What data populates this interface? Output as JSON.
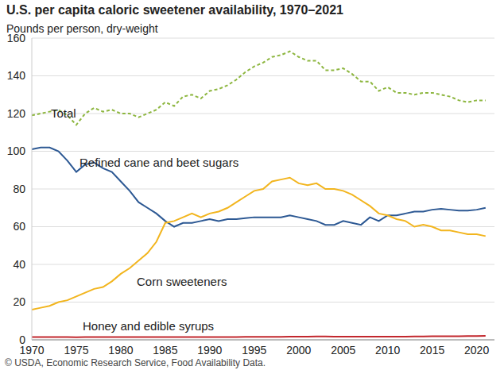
{
  "chart_data": {
    "type": "line",
    "title": "U.S. per capita caloric sweetener availability, 1970–2021",
    "ylabel": "Pounds per person, dry-weight",
    "source": "© USDA, Economic Research Service, Food Availability Data.",
    "x": [
      1970,
      1971,
      1972,
      1973,
      1974,
      1975,
      1976,
      1977,
      1978,
      1979,
      1980,
      1981,
      1982,
      1983,
      1984,
      1985,
      1986,
      1987,
      1988,
      1989,
      1990,
      1991,
      1992,
      1993,
      1994,
      1995,
      1996,
      1997,
      1998,
      1999,
      2000,
      2001,
      2002,
      2003,
      2004,
      2005,
      2006,
      2007,
      2008,
      2009,
      2010,
      2011,
      2012,
      2013,
      2014,
      2015,
      2016,
      2017,
      2018,
      2019,
      2020,
      2021
    ],
    "xlim": [
      1970,
      2022
    ],
    "xticks": [
      1970,
      1975,
      1980,
      1985,
      1990,
      1995,
      2000,
      2005,
      2010,
      2015,
      2020
    ],
    "ylim": [
      0,
      160
    ],
    "yticks": [
      0,
      20,
      40,
      60,
      80,
      100,
      120,
      140,
      160
    ],
    "grid": true,
    "series": [
      {
        "name": "Total",
        "color": "#8db63f",
        "line_style": "dashed",
        "values": [
          119,
          120,
          121,
          122,
          119,
          114,
          120,
          123,
          121,
          122,
          120,
          120,
          118,
          120,
          122,
          126,
          124,
          129,
          130,
          128,
          132,
          133,
          135,
          138,
          142,
          145,
          147,
          150,
          151,
          153,
          150,
          148,
          148,
          143,
          143,
          144,
          141,
          137,
          137,
          132,
          134,
          131,
          131,
          130,
          131,
          131,
          130,
          129,
          127,
          126,
          127,
          127
        ]
      },
      {
        "name": "Refined cane and beet sugars",
        "color": "#2c5893",
        "line_style": "solid",
        "values": [
          101,
          102,
          102,
          100,
          95,
          89,
          93,
          94,
          91,
          89,
          84,
          79,
          73,
          70,
          67,
          63,
          60,
          62,
          62,
          63,
          64,
          63,
          64,
          64,
          64.5,
          65,
          65,
          65,
          65,
          66,
          65,
          64,
          63,
          61,
          61,
          63,
          62,
          61,
          65,
          63,
          66,
          66,
          67,
          68,
          68,
          69,
          69.5,
          69,
          68.5,
          68.5,
          69,
          70
        ]
      },
      {
        "name": "Corn sweeteners",
        "color": "#f2b51e",
        "line_style": "solid",
        "values": [
          16,
          17,
          18,
          20,
          21,
          23,
          25,
          27,
          28,
          31,
          35,
          38,
          42,
          46,
          52,
          62,
          63,
          65,
          67,
          65,
          67,
          68,
          70,
          73,
          76,
          79,
          80,
          84,
          85,
          86,
          83,
          82,
          83,
          80,
          80,
          79,
          77,
          74,
          71,
          67,
          66,
          64,
          63,
          60,
          61,
          60,
          58,
          58,
          57,
          56,
          56,
          55
        ]
      },
      {
        "name": "Honey and edible syrups",
        "color": "#c2272d",
        "line_style": "solid",
        "values": [
          1.5,
          1.5,
          1.5,
          1.5,
          1.5,
          1.4,
          1.5,
          1.5,
          1.5,
          1.5,
          1.5,
          1.5,
          1.5,
          1.5,
          1.5,
          1.5,
          1.5,
          1.5,
          1.5,
          1.5,
          1.5,
          1.5,
          1.5,
          1.5,
          1.6,
          1.6,
          1.6,
          1.6,
          1.6,
          1.7,
          1.7,
          1.7,
          1.8,
          1.8,
          1.7,
          1.7,
          1.7,
          1.7,
          1.7,
          1.7,
          1.7,
          1.7,
          1.7,
          1.8,
          1.8,
          1.9,
          1.9,
          1.9,
          1.9,
          2,
          2,
          2.1
        ]
      }
    ]
  }
}
